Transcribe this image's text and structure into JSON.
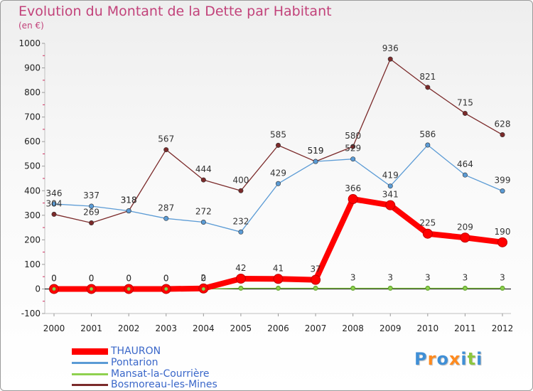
{
  "header": {
    "title": "Evolution du Montant de la Dette par Habitant",
    "unit": "(en €)"
  },
  "colors": {
    "title": "#c2427a",
    "legend_text": "#3a67c9",
    "axis": "#c0c0c0",
    "zero_line": "#000000"
  },
  "brand": {
    "text": "Proxiti",
    "letters": [
      "P",
      "r",
      "o",
      "x",
      "i",
      "t",
      "i"
    ],
    "letter_colors": [
      "#3f8fd6",
      "#ff8a1e",
      "#3f8fd6",
      "#ff8a1e",
      "#3f8fd6",
      "#8cc63f",
      "#3f8fd6"
    ]
  },
  "chart_data": {
    "type": "line",
    "title": "Evolution du Montant de la Dette par Habitant",
    "ylabel": "(en €)",
    "xlabel": "",
    "ylim": [
      -100,
      1000
    ],
    "yticks": [
      -100,
      0,
      100,
      200,
      300,
      400,
      500,
      600,
      700,
      800,
      900,
      1000
    ],
    "x": [
      2000,
      2001,
      2002,
      2003,
      2004,
      2005,
      2006,
      2007,
      2008,
      2009,
      2010,
      2011,
      2012
    ],
    "grid": false,
    "legend_position": "bottom-left",
    "series": [
      {
        "name": "THAURON",
        "color": "#ff0000",
        "width": 8,
        "values": [
          0,
          0,
          0,
          0,
          2,
          42,
          41,
          37,
          366,
          341,
          225,
          209,
          190
        ],
        "labels": [
          "0",
          "0",
          "0",
          "0",
          "2",
          "42",
          "41",
          "37",
          "366",
          "341",
          "225",
          "209",
          "190"
        ]
      },
      {
        "name": "Pontarion",
        "color": "#5b9bd5",
        "width": 1.3,
        "values": [
          346,
          337,
          318,
          287,
          272,
          232,
          429,
          519,
          529,
          419,
          586,
          464,
          399
        ],
        "labels": [
          "346",
          "337",
          "318",
          "287",
          "272",
          "232",
          "429",
          "519",
          "529",
          "419",
          "586",
          "464",
          "399"
        ]
      },
      {
        "name": "Mansat-la-Courrière",
        "color": "#8fd14f",
        "width": 1.3,
        "values": [
          0,
          0,
          0,
          0,
          0,
          3,
          3,
          3,
          3,
          3,
          3,
          3,
          3
        ],
        "labels": [
          "0",
          "0",
          "0",
          "0",
          "0",
          "",
          "",
          "",
          "3",
          "3",
          "3",
          "3",
          "3"
        ]
      },
      {
        "name": "Bosmoreau-les-Mines",
        "color": "#7b2a2a",
        "width": 1.3,
        "values": [
          304,
          269,
          318,
          567,
          444,
          400,
          585,
          519,
          580,
          936,
          821,
          715,
          628
        ],
        "labels": [
          "304",
          "269",
          "318",
          "567",
          "444",
          "400",
          "585",
          "519",
          "580",
          "936",
          "821",
          "715",
          "628"
        ]
      }
    ]
  }
}
